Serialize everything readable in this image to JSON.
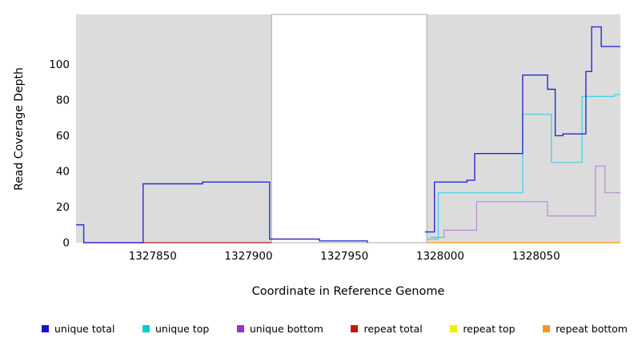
{
  "chart_data": {
    "type": "line",
    "step": true,
    "title": "",
    "xlabel": "Coordinate in Reference Genome",
    "ylabel": "Read Coverage Depth",
    "xlim": [
      1327810,
      1328094
    ],
    "ylim": [
      0,
      128
    ],
    "xticks": [
      1327850,
      1327900,
      1327950,
      1328000,
      1328050
    ],
    "yticks": [
      0,
      20,
      40,
      60,
      80,
      100
    ],
    "plot_background": "#dcdcdc",
    "white_band": {
      "x0": 1327912,
      "x1": 1327993,
      "fill": "#ffffff",
      "border": "#a8a8a8"
    },
    "grid": false,
    "legend_position": "bottom",
    "series": [
      {
        "name": "repeat total",
        "color": "#b22222",
        "width": 1.2,
        "segments": [
          [
            [
              1327843,
              0
            ],
            [
              1327912,
              0
            ]
          ]
        ]
      },
      {
        "name": "repeat top",
        "color": "#eeee11",
        "width": 1.2,
        "segments": []
      },
      {
        "name": "repeat bottom",
        "color": "#ff9900",
        "width": 1.3,
        "segments": [
          [
            [
              1327993,
              0
            ],
            [
              1328094,
              0
            ]
          ]
        ]
      },
      {
        "name": "unique bottom",
        "color": "#b38add",
        "width": 1.2,
        "segments": [
          [
            [
              1327995,
              3
            ],
            [
              1328002,
              7
            ],
            [
              1328019,
              23
            ],
            [
              1328056,
              15
            ],
            [
              1328081,
              43
            ],
            [
              1328086,
              28
            ],
            [
              1328094,
              28
            ]
          ]
        ]
      },
      {
        "name": "unique top",
        "color": "#3fd2e0",
        "width": 1.2,
        "segments": [
          [
            [
              1327993,
              2
            ],
            [
              1327999,
              28
            ],
            [
              1328043,
              72
            ],
            [
              1328058,
              45
            ],
            [
              1328074,
              82
            ],
            [
              1328091,
              83
            ],
            [
              1328094,
              83
            ]
          ]
        ]
      },
      {
        "name": "unique total",
        "color": "#2a2ad4",
        "width": 1.4,
        "segments": [
          [
            [
              1327810,
              10
            ],
            [
              1327814,
              0
            ],
            [
              1327845,
              33
            ],
            [
              1327876,
              34
            ],
            [
              1327911,
              2
            ],
            [
              1327937,
              1
            ],
            [
              1327962,
              0
            ]
          ],
          [
            [
              1327992,
              6
            ],
            [
              1327997,
              34
            ],
            [
              1328014,
              35
            ],
            [
              1328018,
              50
            ],
            [
              1328043,
              94
            ],
            [
              1328056,
              86
            ],
            [
              1328060,
              60
            ],
            [
              1328064,
              61
            ],
            [
              1328076,
              96
            ],
            [
              1328079,
              121
            ],
            [
              1328084,
              110
            ],
            [
              1328094,
              110
            ]
          ]
        ]
      }
    ],
    "legend": [
      {
        "label": "unique total",
        "color": "#1414cc"
      },
      {
        "label": "unique top",
        "color": "#00cccc"
      },
      {
        "label": "unique bottom",
        "color": "#9933cc"
      },
      {
        "label": "repeat total",
        "color": "#cc1111"
      },
      {
        "label": "repeat top",
        "color": "#eeee11"
      },
      {
        "label": "repeat bottom",
        "color": "#ee9922"
      }
    ]
  }
}
